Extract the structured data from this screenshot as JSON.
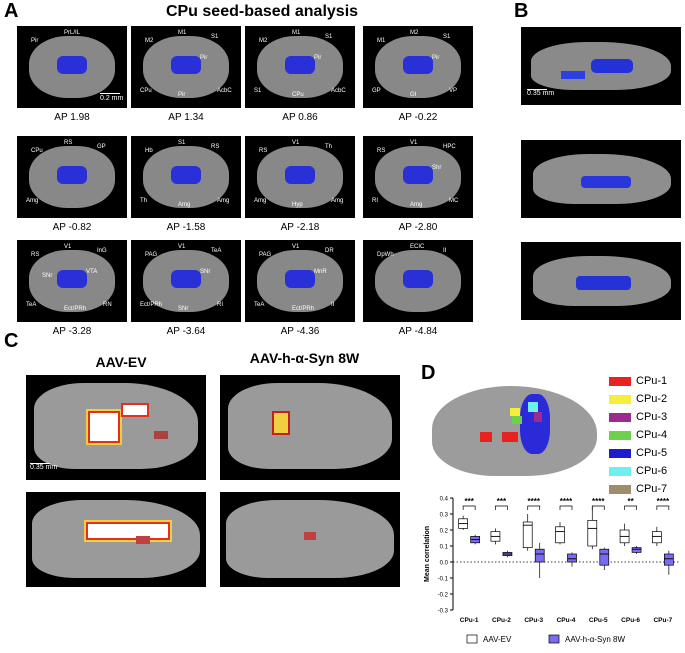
{
  "panels": {
    "a": "A",
    "b": "B",
    "c": "C",
    "d": "D"
  },
  "title": "CPu seed-based analysis",
  "scale_bars": {
    "a": "0.2 mm",
    "b": "0.35 mm",
    "c": "0.35 mm"
  },
  "slices": [
    {
      "ap": "AP 1.98",
      "labels": [
        "PrL/IL",
        "Pir"
      ]
    },
    {
      "ap": "AP 1.34",
      "labels": [
        "M1",
        "M2",
        "S1",
        "CPu",
        "Pir",
        "AcbC",
        "Pir"
      ]
    },
    {
      "ap": "AP 0.86",
      "labels": [
        "M1",
        "M2",
        "S1",
        "S1",
        "CPu",
        "AcbC",
        "Pir"
      ]
    },
    {
      "ap": "AP -0.22",
      "labels": [
        "M2",
        "M1",
        "S1",
        "GP",
        "GI",
        "VP",
        "Pir"
      ]
    },
    {
      "ap": "AP -0.82",
      "labels": [
        "RS",
        "CPu",
        "GP",
        "Amg"
      ]
    },
    {
      "ap": "AP -1.58",
      "labels": [
        "S1",
        "Hb",
        "RS",
        "Th",
        "Amg",
        "Amg"
      ]
    },
    {
      "ap": "AP -2.18",
      "labels": [
        "V1",
        "RS",
        "Th",
        "Amg",
        "Hyp",
        "Amg"
      ]
    },
    {
      "ap": "AP -2.80",
      "labels": [
        "V1",
        "RS",
        "HPC",
        "RI",
        "Amg",
        "MC",
        "Shr"
      ]
    },
    {
      "ap": "AP -3.28",
      "labels": [
        "V1",
        "RS",
        "InG",
        "TeA",
        "Ect/PRh",
        "RN",
        "VTA",
        "SNr"
      ]
    },
    {
      "ap": "AP -3.64",
      "labels": [
        "V1",
        "PAG",
        "TeA",
        "Ect/PRh",
        "SNr",
        "RI",
        "SNr"
      ]
    },
    {
      "ap": "AP -4.36",
      "labels": [
        "V1",
        "PAG",
        "DR",
        "TeA",
        "Ect/PRh",
        "II",
        "MnR"
      ]
    },
    {
      "ap": "AP -4.84",
      "labels": [
        "ECIC",
        "DpWh",
        "II"
      ]
    }
  ],
  "groups_c": [
    "AAV-EV",
    "AAV-h-α-Syn 8W"
  ],
  "legend_d": [
    {
      "name": "CPu-1",
      "color": "#e8231f"
    },
    {
      "name": "CPu-2",
      "color": "#f5ee3a"
    },
    {
      "name": "CPu-3",
      "color": "#9b2b8e"
    },
    {
      "name": "CPu-4",
      "color": "#6dd14b"
    },
    {
      "name": "CPu-5",
      "color": "#1c1cd0"
    },
    {
      "name": "CPu-6",
      "color": "#6ef0ef"
    },
    {
      "name": "CPu-7",
      "color": "#a08c6b"
    }
  ],
  "chart_data": {
    "type": "box",
    "ylabel": "Mean correlation",
    "ylim": [
      -0.3,
      0.4
    ],
    "yticks": [
      "0.4",
      "0.3",
      "0.2",
      "0.1",
      "0.0",
      "-0.1",
      "-0.2",
      "-0.3"
    ],
    "categories": [
      "CPu-1",
      "CPu-2",
      "CPu-3",
      "CPu-4",
      "CPu-5",
      "CPu-6",
      "CPu-7"
    ],
    "significance": [
      "***",
      "***",
      "****",
      "****",
      "****",
      "**",
      "****"
    ],
    "series": [
      {
        "name": "AAV-EV",
        "color": "#ffffff",
        "median": [
          0.24,
          0.16,
          0.23,
          0.19,
          0.21,
          0.16,
          0.16
        ],
        "q1": [
          0.21,
          0.13,
          0.09,
          0.12,
          0.1,
          0.12,
          0.12
        ],
        "q3": [
          0.27,
          0.19,
          0.25,
          0.22,
          0.26,
          0.2,
          0.19
        ],
        "min": [
          0.2,
          0.11,
          0.07,
          0.11,
          0.08,
          0.1,
          0.1
        ],
        "max": [
          0.29,
          0.21,
          0.3,
          0.25,
          0.35,
          0.24,
          0.22
        ]
      },
      {
        "name": "AAV-h-α-Syn 8W",
        "color": "#7a6cf0",
        "median": [
          0.14,
          0.05,
          0.05,
          0.02,
          0.05,
          0.08,
          0.02
        ],
        "q1": [
          0.12,
          0.04,
          0.0,
          0.0,
          -0.02,
          0.06,
          -0.02
        ],
        "q3": [
          0.16,
          0.06,
          0.08,
          0.05,
          0.08,
          0.09,
          0.05
        ],
        "min": [
          0.11,
          0.03,
          -0.1,
          -0.03,
          -0.05,
          0.05,
          -0.08
        ],
        "max": [
          0.17,
          0.07,
          0.12,
          0.06,
          0.09,
          0.1,
          0.07
        ]
      }
    ]
  }
}
